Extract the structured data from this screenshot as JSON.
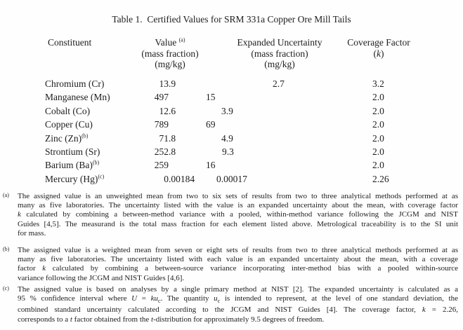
{
  "title": "Table 1.  Certified Values for SRM 331a Copper Ore Mill Tails",
  "table": {
    "columns": [
      {
        "label": "Constituent",
        "sup": "",
        "sublines": []
      },
      {
        "label": "Value",
        "sup": "(a)",
        "sublines": [
          "(mass fraction)",
          "(mg/kg)"
        ]
      },
      {
        "label": "Expanded Uncertainty",
        "sup": "",
        "sublines": [
          "(mass fraction)",
          "(mg/kg)"
        ]
      },
      {
        "label": "Coverage Factor",
        "sup": "",
        "sublines": [
          "(*k*)"
        ]
      }
    ],
    "rows": [
      {
        "constituent": "Chromium (Cr)",
        "sup": "",
        "value": "13.9",
        "uncertainty": "2.7",
        "coverage_factor": "3.2"
      },
      {
        "constituent": "Manganese (Mn)",
        "sup": "",
        "value": "497",
        "uncertainty": "15",
        "coverage_factor": "2.0"
      },
      {
        "constituent": "Cobalt (Co)",
        "sup": "",
        "value": "12.6",
        "uncertainty": "3.9",
        "coverage_factor": "2.0"
      },
      {
        "constituent": "Copper (Cu)",
        "sup": "",
        "value": "789",
        "uncertainty": "69",
        "coverage_factor": "2.0"
      },
      {
        "constituent": "Zinc (Zn)",
        "sup": "(b)",
        "value": "71.8",
        "uncertainty": "4.9",
        "coverage_factor": "2.0"
      },
      {
        "constituent": "Strontium (Sr)",
        "sup": "",
        "value": "252.8",
        "uncertainty": "9.3",
        "coverage_factor": "2.0"
      },
      {
        "constituent": "Barium (Ba)",
        "sup": "(b)",
        "value": "259",
        "uncertainty": "16",
        "coverage_factor": "2.0"
      },
      {
        "constituent": "Mercury (Hg)",
        "sup": "(c)",
        "value": "0.00184",
        "uncertainty": "0.00017",
        "coverage_factor": "2.26"
      }
    ]
  },
  "footnotes": [
    {
      "label": "(a)",
      "lines": [
        "The assigned value is an unweighted mean from two to six sets of results from two to three analytical methods performed at as",
        "many as five laboratories.  The uncertainty listed with the value is an expanded uncertainty about the mean, with coverage factor",
        "*k* calculated by combining a between-method variance with a pooled, within-method variance following the JCGM and NIST",
        "Guides [4,5].  The measurand is the total mass fraction for each element listed above.  Metrological traceability is to the SI unit",
        "for mass."
      ]
    },
    {
      "label": "(b)",
      "lines": [
        "The assigned value is a weighted mean from seven or eight sets of results from two to three analytical methods performed at as",
        "many as five laboratories.  The uncertainty listed with each value is an expanded uncertainty about the mean, with a coverage",
        "factor *k* calculated by combining a between-source variance incorporating inter-method bias with a pooled within-source",
        "variance following the JCGM and NIST Guides [4,6]."
      ]
    },
    {
      "label": "(c)",
      "lines": [
        "The assigned value is based on analyses by a single primary method at NIST [2].  The expanded uncertainty is calculated as a",
        "95 % confidence interval where *U* = *ku*~c~.  The quantity *u*~c~ is intended to represent, at the level of one standard deviation, the",
        "combined standard uncertainty calculated according to the JCGM and NIST Guides [4].  The coverage factor, *k* = 2.26,",
        "corresponds to a *t* factor obtained from the *t*-distribution for approximately 9.5 degrees of freedom."
      ]
    }
  ]
}
